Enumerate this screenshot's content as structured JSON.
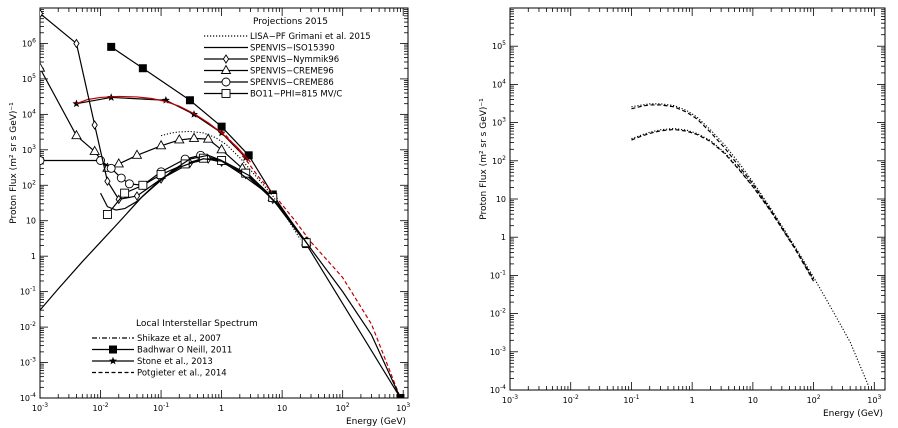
{
  "chart_data": [
    {
      "type": "line",
      "title": "",
      "xlabel": "Energy (GeV)",
      "ylabel": "Proton Flux (m² sr s GeV)⁻¹",
      "xscale": "log",
      "yscale": "log",
      "xlim": [
        0.001,
        1200
      ],
      "ylim": [
        0.0001,
        10000000
      ],
      "grid": false,
      "x_ticks": [
        {
          "v": 0.001,
          "base": "10",
          "exp": "-3"
        },
        {
          "v": 0.01,
          "base": "10",
          "exp": "-2"
        },
        {
          "v": 0.1,
          "base": "10",
          "exp": "-1"
        },
        {
          "v": 1,
          "base": "1",
          "exp": ""
        },
        {
          "v": 10,
          "base": "10",
          "exp": ""
        },
        {
          "v": 100,
          "base": "10",
          "exp": "2"
        },
        {
          "v": 1000,
          "base": "10",
          "exp": "3"
        }
      ],
      "y_ticks": [
        {
          "v": 0.0001,
          "base": "10",
          "exp": "-4"
        },
        {
          "v": 0.001,
          "base": "10",
          "exp": "-3"
        },
        {
          "v": 0.01,
          "base": "10",
          "exp": "-2"
        },
        {
          "v": 0.1,
          "base": "10",
          "exp": "-1"
        },
        {
          "v": 1,
          "base": "1",
          "exp": ""
        },
        {
          "v": 10,
          "base": "10",
          "exp": ""
        },
        {
          "v": 100,
          "base": "10",
          "exp": "2"
        },
        {
          "v": 1000,
          "base": "10",
          "exp": "3"
        },
        {
          "v": 10000,
          "base": "10",
          "exp": "4"
        },
        {
          "v": 100000,
          "base": "10",
          "exp": "5"
        },
        {
          "v": 1000000,
          "base": "10",
          "exp": "6"
        }
      ],
      "legend_projections": {
        "title": "Projections 2015",
        "placement": "top-right",
        "entries": [
          {
            "label": "LISA−PF Grimani et al. 2015",
            "style": "dotted",
            "marker": ""
          },
          {
            "label": "SPENVIS−ISO15390",
            "style": "solid",
            "marker": ""
          },
          {
            "label": "SPENVIS−Nymmik96",
            "style": "solid",
            "marker": "diamond"
          },
          {
            "label": "SPENVIS−CREME96",
            "style": "solid",
            "marker": "triangle"
          },
          {
            "label": "SPENVIS−CREME86",
            "style": "solid",
            "marker": "circle"
          },
          {
            "label": "BO11−PHI=815 MV/C",
            "style": "solid",
            "marker": "square-open"
          }
        ]
      },
      "legend_lis": {
        "title": "Local Interstellar Spectrum",
        "placement": "bottom-left",
        "entries": [
          {
            "label": "Shikaze et al., 2007",
            "style": "dashdot",
            "marker": ""
          },
          {
            "label": "Badhwar O Neill, 2011",
            "style": "solid",
            "marker": "square-filled"
          },
          {
            "label": "Stone et al., 2013",
            "style": "solid",
            "marker": "star"
          },
          {
            "label": "Potgieter et al., 2014",
            "style": "dashed",
            "marker": ""
          }
        ]
      },
      "series": [
        {
          "name": "Badhwar O Neill, 2011",
          "style": "solid",
          "color": "#000000",
          "marker": "square-filled",
          "x": [
            0.015,
            0.05,
            0.3,
            1,
            2.8,
            7,
            25,
            900
          ],
          "y": [
            800000,
            200000,
            25000,
            4500,
            700,
            55,
            2.2,
            0.0001
          ]
        },
        {
          "name": "Stone et al., 2013",
          "style": "solid",
          "color": "#000000",
          "marker": "star",
          "x": [
            0.004,
            0.015,
            0.12,
            0.35,
            1,
            2.5
          ],
          "y": [
            20000,
            30000,
            25000,
            10000,
            3000,
            600
          ]
        },
        {
          "name": "",
          "style": "solid",
          "color": "#c00000",
          "marker": "",
          "x": [
            0.004,
            0.006,
            0.01,
            0.02,
            0.04,
            0.07,
            0.12,
            0.2,
            0.35,
            0.6,
            1,
            1.8,
            3
          ],
          "y": [
            20000,
            26000,
            30000,
            32000,
            31000,
            28000,
            23000,
            17000,
            10500,
            5800,
            3000,
            1200,
            450
          ]
        },
        {
          "name": "",
          "style": "dashed",
          "color": "#c00000",
          "marker": "",
          "x": [
            1,
            2,
            4,
            7,
            15,
            30,
            100,
            300,
            900
          ],
          "y": [
            3500,
            900,
            180,
            60,
            12,
            2.5,
            0.25,
            0.012,
            0.0001
          ]
        },
        {
          "name": "SPENVIS−CREME96",
          "style": "solid",
          "color": "#000000",
          "marker": "triangle",
          "x": [
            0.001,
            0.004,
            0.008,
            0.013,
            0.02,
            0.04,
            0.1,
            0.2,
            0.35,
            0.6,
            1,
            2.2,
            7,
            25
          ],
          "y": [
            200000,
            2500,
            900,
            300,
            400,
            700,
            1300,
            1900,
            2100,
            2000,
            1000,
            300,
            45,
            2.5
          ]
        },
        {
          "name": "SPENVIS−CREME86",
          "style": "solid",
          "color": "#000000",
          "marker": "circle",
          "x": [
            0.001,
            0.01,
            0.015,
            0.022,
            0.03,
            0.05,
            0.1,
            0.25,
            0.45,
            1,
            2.5,
            7,
            25
          ],
          "y": [
            500,
            500,
            300,
            160,
            110,
            100,
            240,
            550,
            700,
            500,
            220,
            45,
            2.5
          ]
        },
        {
          "name": "SPENVIS−Nymmik96",
          "style": "solid",
          "color": "#000000",
          "marker": "diamond",
          "x": [
            0.001,
            0.004,
            0.008,
            0.013,
            0.02,
            0.04,
            0.1,
            0.3,
            0.6,
            1,
            2.5,
            7,
            25
          ],
          "y": [
            7000000,
            1000000,
            5000,
            130,
            40,
            50,
            150,
            420,
            550,
            450,
            200,
            40,
            2.3
          ]
        },
        {
          "name": "BO11−PHI=815 MV/C",
          "style": "solid",
          "color": "#000000",
          "marker": "square-open",
          "x": [
            0.013,
            0.025,
            0.05,
            0.1,
            0.25,
            0.5,
            1,
            2.5,
            7,
            25
          ],
          "y": [
            15,
            60,
            100,
            200,
            400,
            580,
            500,
            220,
            45,
            2.4
          ]
        },
        {
          "name": "SPENVIS−ISO15390",
          "style": "solid",
          "color": "#000000",
          "marker": "",
          "x": [
            0.001,
            0.002,
            0.005,
            0.01,
            0.02,
            0.05,
            0.1,
            0.2,
            0.5,
            1,
            2,
            5,
            10,
            30
          ],
          "y": [
            0.03,
            0.12,
            0.7,
            2.5,
            9,
            50,
            150,
            320,
            560,
            480,
            220,
            70,
            22,
            1.6
          ]
        },
        {
          "name": "",
          "style": "solid",
          "color": "#000000",
          "marker": "",
          "x": [
            0.01,
            0.013,
            0.018,
            0.025,
            0.04,
            0.08,
            0.15,
            0.3,
            0.6,
            1,
            3,
            10,
            30,
            100,
            300,
            900
          ],
          "y": [
            60,
            25,
            20,
            22,
            35,
            100,
            250,
            550,
            700,
            500,
            180,
            20,
            1.6,
            0.1,
            0.006,
            0.0001
          ]
        },
        {
          "name": "LISA−PF Grimani et al. 2015",
          "style": "dotted",
          "color": "#000000",
          "marker": "",
          "x": [
            0.1,
            0.15,
            0.2,
            0.3,
            0.5,
            0.8,
            1.2,
            2,
            3.5,
            7,
            20
          ],
          "y": [
            2500,
            3000,
            3200,
            3300,
            3000,
            2200,
            1400,
            600,
            200,
            50,
            3
          ]
        }
      ]
    },
    {
      "type": "line",
      "title": "",
      "xlabel": "Energy (GeV)",
      "ylabel": "Proton Flux (m² sr s GeV)⁻¹",
      "xscale": "log",
      "yscale": "log",
      "xlim": [
        0.001,
        1500
      ],
      "ylim": [
        0.0001,
        1000000
      ],
      "grid": false,
      "x_ticks": [
        {
          "v": 0.001,
          "base": "10",
          "exp": "-3"
        },
        {
          "v": 0.01,
          "base": "10",
          "exp": "-2"
        },
        {
          "v": 0.1,
          "base": "10",
          "exp": "-1"
        },
        {
          "v": 1,
          "base": "1",
          "exp": ""
        },
        {
          "v": 10,
          "base": "10",
          "exp": ""
        },
        {
          "v": 100,
          "base": "10",
          "exp": "2"
        },
        {
          "v": 1000,
          "base": "10",
          "exp": "3"
        }
      ],
      "y_ticks": [
        {
          "v": 0.0001,
          "base": "10",
          "exp": "-4"
        },
        {
          "v": 0.001,
          "base": "10",
          "exp": "-3"
        },
        {
          "v": 0.01,
          "base": "10",
          "exp": "-2"
        },
        {
          "v": 0.1,
          "base": "10",
          "exp": "-1"
        },
        {
          "v": 1,
          "base": "1",
          "exp": ""
        },
        {
          "v": 10,
          "base": "10",
          "exp": ""
        },
        {
          "v": 100,
          "base": "10",
          "exp": "2"
        },
        {
          "v": 1000,
          "base": "10",
          "exp": "3"
        },
        {
          "v": 10000,
          "base": "10",
          "exp": "4"
        },
        {
          "v": 100000,
          "base": "10",
          "exp": "5"
        }
      ],
      "series": [
        {
          "name": "",
          "style": "dotted",
          "color": "#000000",
          "marker": "",
          "x": [
            0.1,
            0.15,
            0.2,
            0.3,
            0.5,
            0.8,
            1.2,
            2,
            3.5,
            6,
            10,
            20,
            50,
            100,
            200,
            400,
            800
          ],
          "y": [
            2600,
            2900,
            3100,
            3100,
            2800,
            2100,
            1400,
            650,
            250,
            85,
            28,
            5.5,
            0.55,
            0.09,
            0.013,
            0.0018,
            0.00013
          ]
        },
        {
          "name": "",
          "style": "dashed",
          "color": "#000000",
          "marker": "",
          "x": [
            0.1,
            0.15,
            0.2,
            0.3,
            0.5,
            0.8,
            1.2,
            2,
            3.5,
            6,
            10,
            20,
            50,
            100
          ],
          "y": [
            2300,
            2700,
            2900,
            2900,
            2600,
            1900,
            1250,
            560,
            210,
            70,
            25,
            5,
            0.5,
            0.08
          ]
        },
        {
          "name": "",
          "style": "dotted",
          "color": "#000000",
          "marker": "",
          "x": [
            0.1,
            0.15,
            0.2,
            0.3,
            0.5,
            0.8,
            1.2,
            2,
            3.5,
            6,
            10,
            20,
            50,
            100
          ],
          "y": [
            380,
            480,
            560,
            650,
            700,
            640,
            520,
            340,
            160,
            60,
            22,
            4.8,
            0.5,
            0.075
          ]
        },
        {
          "name": "",
          "style": "dashed",
          "color": "#000000",
          "marker": "",
          "x": [
            0.1,
            0.15,
            0.2,
            0.3,
            0.5,
            0.8,
            1.2,
            2,
            3.5,
            6,
            10,
            20,
            50,
            100
          ],
          "y": [
            350,
            450,
            520,
            610,
            660,
            600,
            490,
            320,
            150,
            57,
            21,
            4.6,
            0.48,
            0.07
          ]
        }
      ]
    }
  ]
}
